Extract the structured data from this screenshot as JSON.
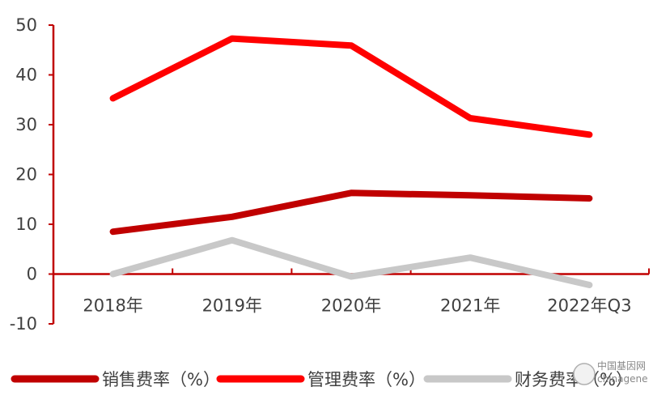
{
  "chart_data": {
    "type": "line",
    "categories": [
      "2018年",
      "2019年",
      "2020年",
      "2021年",
      "2022年Q3"
    ],
    "ylim": [
      -10,
      50
    ],
    "yticks": [
      -10,
      0,
      10,
      20,
      30,
      40,
      50
    ],
    "grid": false,
    "legend_position": "bottom",
    "axis_color": "#C00000",
    "series": [
      {
        "name": "销售费率（%）",
        "values": [
          8.5,
          11.5,
          16.3,
          15.8,
          15.2
        ],
        "color": "#C00000"
      },
      {
        "name": "管理费率（%）",
        "values": [
          35.3,
          47.3,
          45.9,
          31.3,
          28.0
        ],
        "color": "#FF0000"
      },
      {
        "name": "财务费率（%）",
        "values": [
          0.0,
          6.8,
          -0.5,
          3.3,
          -2.2
        ],
        "color": "#C8C8C8"
      }
    ]
  },
  "watermark": {
    "title": "中国基因网",
    "subtitle": "chinagene"
  }
}
